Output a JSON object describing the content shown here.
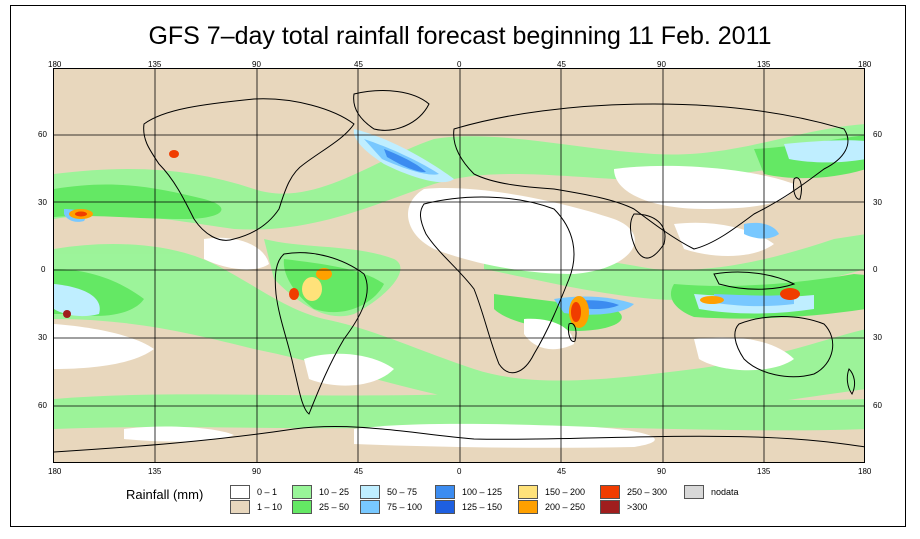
{
  "title": "GFS 7–day total rainfall forecast beginning 11 Feb. 2011",
  "lon_ticks": [
    "180",
    "135",
    "90",
    "45",
    "0",
    "45",
    "90",
    "135",
    "180"
  ],
  "lat_ticks": [
    "60",
    "30",
    "0",
    "30",
    "60"
  ],
  "legend": {
    "title": "Rainfall (mm)",
    "items": [
      {
        "label": "0 – 1",
        "color": "#ffffff"
      },
      {
        "label": "1 – 10",
        "color": "#e8d7bd"
      },
      {
        "label": "10 – 25",
        "color": "#98f598"
      },
      {
        "label": "25 – 50",
        "color": "#64e864"
      },
      {
        "label": "50 – 75",
        "color": "#bfeeff"
      },
      {
        "label": "75 – 100",
        "color": "#78c8ff"
      },
      {
        "label": "100 – 125",
        "color": "#3c8cf0"
      },
      {
        "label": "125 – 150",
        "color": "#1e5fe0"
      },
      {
        "label": "150 – 200",
        "color": "#ffe27a"
      },
      {
        "label": "200 – 250",
        "color": "#ffa000"
      },
      {
        "label": "250 – 300",
        "color": "#f03c00"
      },
      {
        "label": ">300",
        "color": "#a01e1e"
      },
      {
        "label": "nodata",
        "color": "#d8d8d8"
      }
    ]
  }
}
